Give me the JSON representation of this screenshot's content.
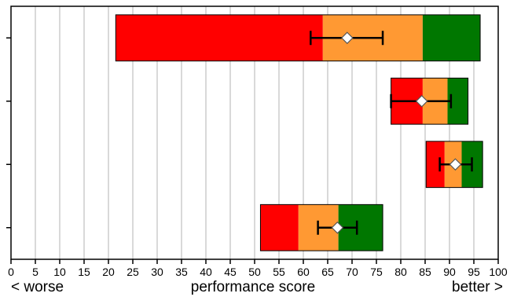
{
  "chart_data": {
    "type": "bar",
    "orientation": "horizontal",
    "chart_style": "bullet-chart-with-error-bars",
    "title": "",
    "xlabel": "performance score",
    "xlabel_left": "< worse",
    "xlabel_right": "better >",
    "xlim": [
      0,
      100
    ],
    "x_ticks": [
      0,
      5,
      10,
      15,
      20,
      25,
      30,
      35,
      40,
      45,
      50,
      55,
      60,
      65,
      70,
      75,
      80,
      85,
      90,
      95,
      100
    ],
    "grid": "vertical",
    "legend": "none",
    "colors": {
      "bad": "#ff0000",
      "mid": "#ff9933",
      "good": "#007700",
      "marker": "#ffffff",
      "whisker": "#000000",
      "grid": "#b3b3b3"
    },
    "rows": [
      {
        "bands": [
          21.5,
          64,
          84.5,
          96.3
        ],
        "mean": 69,
        "err_low": 61.5,
        "err_high": 76.3
      },
      {
        "bands": [
          78,
          84.5,
          89.6,
          93.8
        ],
        "mean": 84.3,
        "err_low": 78,
        "err_high": 90.3
      },
      {
        "bands": [
          85.2,
          89,
          92.5,
          96.8
        ],
        "mean": 91.2,
        "err_low": 88,
        "err_high": 94.6
      },
      {
        "bands": [
          51.2,
          59,
          67.2,
          76.3
        ],
        "mean": 67,
        "err_low": 63,
        "err_high": 71
      }
    ]
  }
}
